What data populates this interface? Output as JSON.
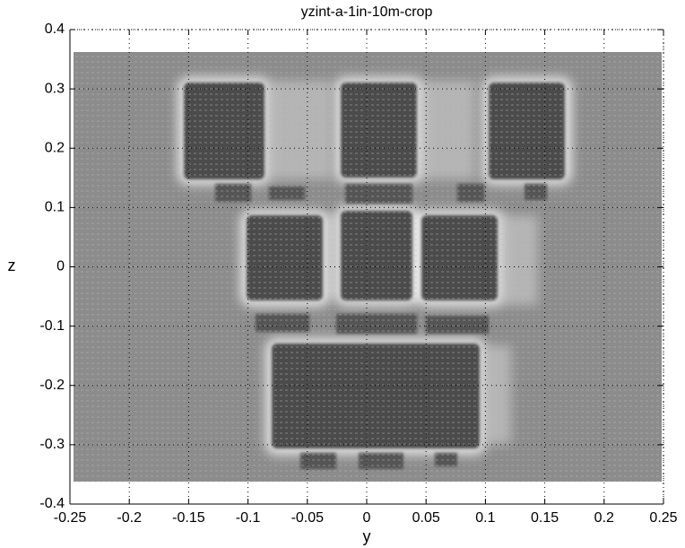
{
  "chart_data": {
    "type": "heatmap",
    "title": "yzint-a-1in-10m-crop",
    "x_label": "y",
    "y_label": "z",
    "xlim": [
      -0.25,
      0.25
    ],
    "ylim": [
      -0.4,
      0.4
    ],
    "xticks": [
      -0.25,
      -0.2,
      -0.15,
      -0.1,
      -0.05,
      0,
      0.05,
      0.1,
      0.15,
      0.2,
      0.25
    ],
    "yticks": [
      -0.4,
      -0.3,
      -0.2,
      -0.1,
      0,
      0.1,
      0.2,
      0.3,
      0.4
    ],
    "grid": true
  }
}
